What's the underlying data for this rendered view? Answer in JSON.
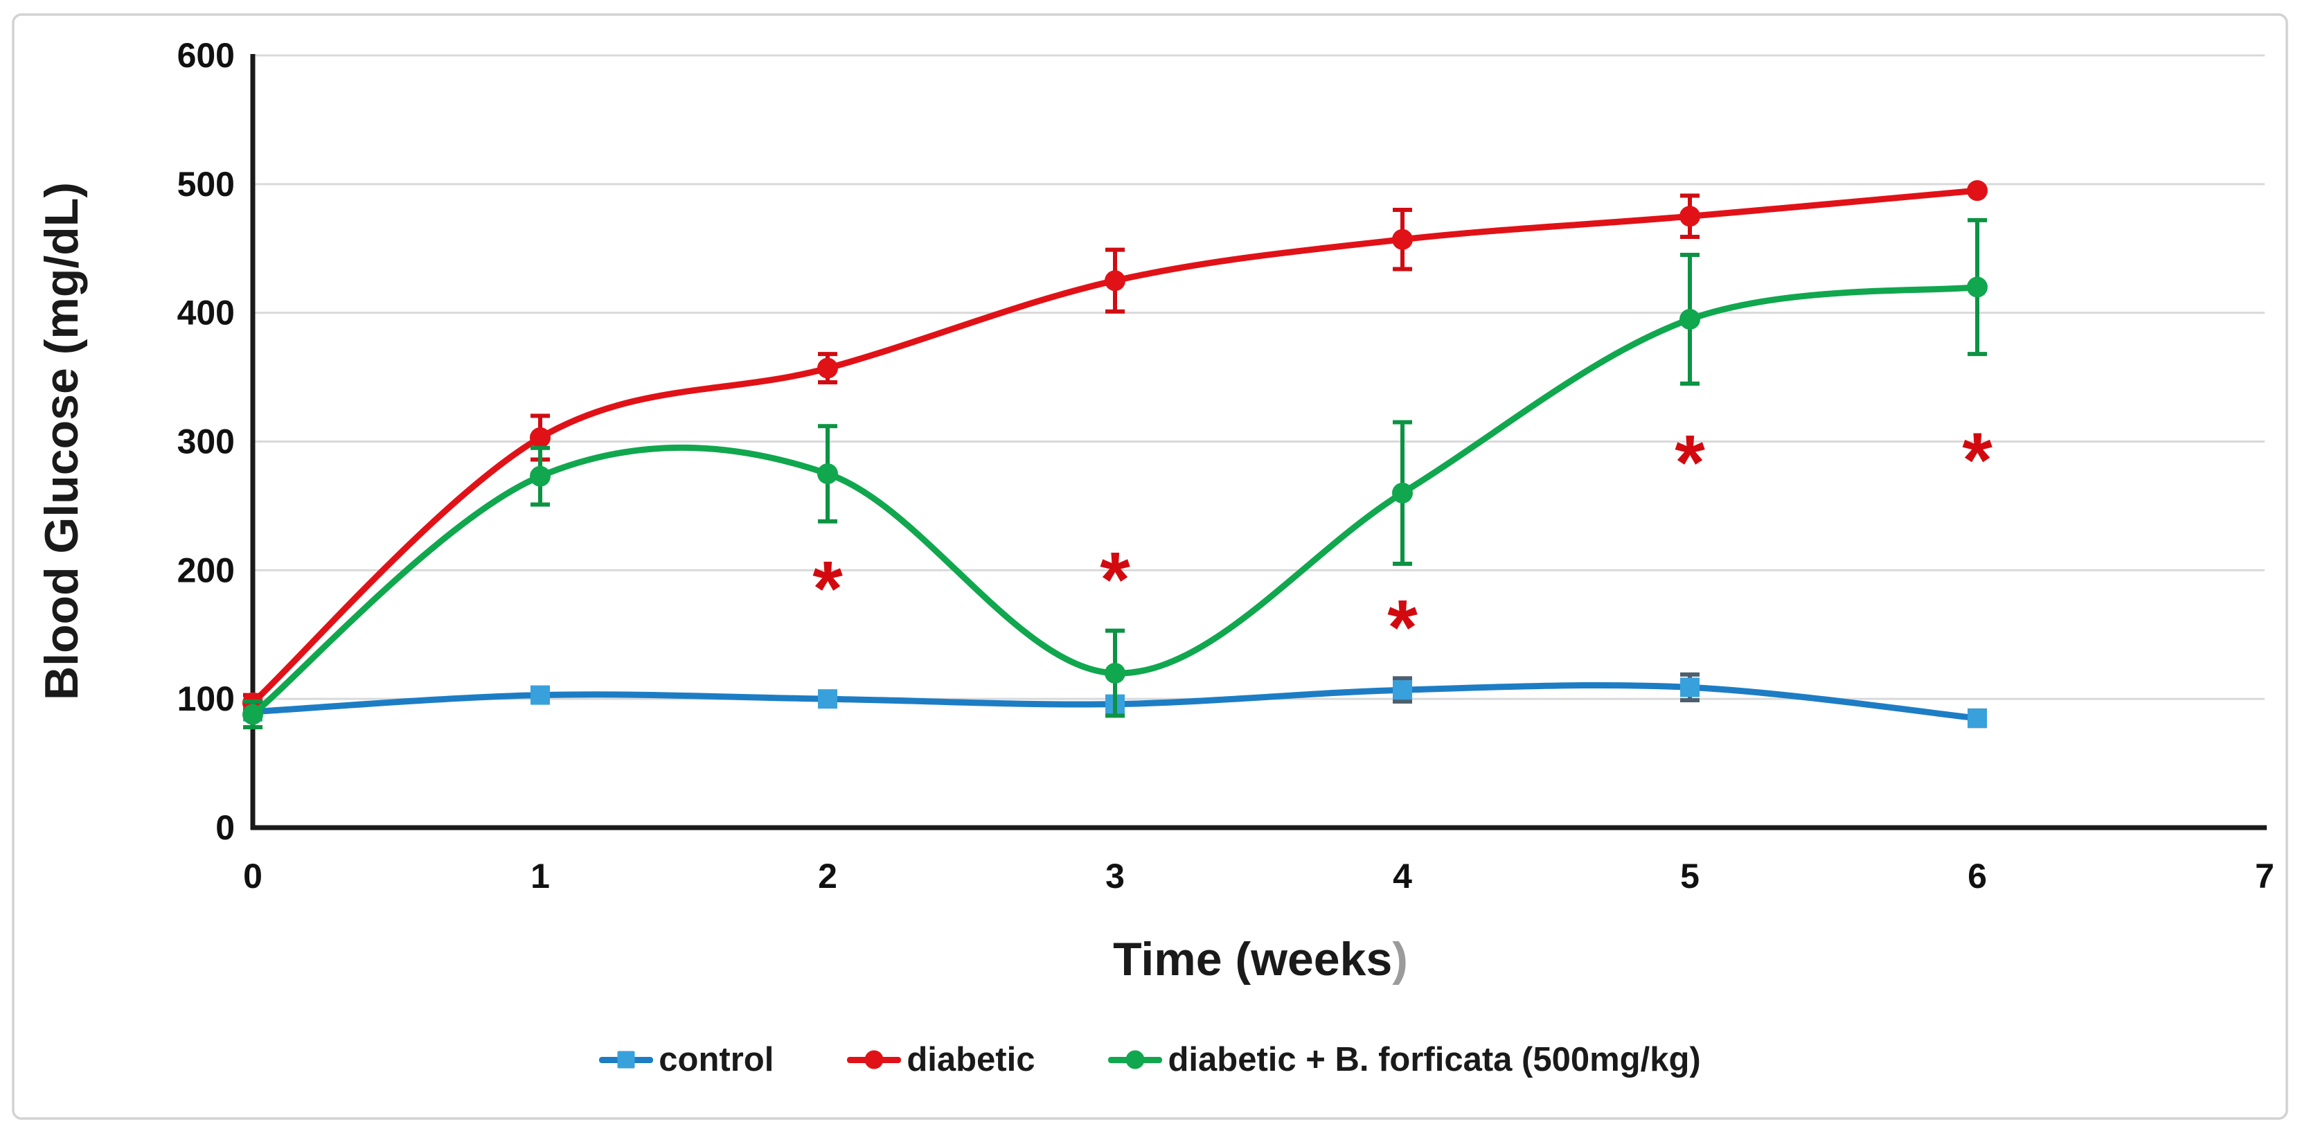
{
  "chart_data": {
    "type": "line",
    "title": "",
    "xlabel": "Time (weeks)",
    "xlabel_parts": {
      "main": "Time (weeks",
      "paren": ")"
    },
    "ylabel": "Blood Glucose (mg/dL)",
    "xlim": [
      0,
      7
    ],
    "ylim": [
      0,
      600
    ],
    "x_ticks": [
      0,
      1,
      2,
      3,
      4,
      5,
      6,
      7
    ],
    "y_ticks": [
      0,
      100,
      200,
      300,
      400,
      500,
      600
    ],
    "grid": true,
    "legend_position": "bottom",
    "x": [
      0,
      1,
      2,
      3,
      4,
      5,
      6
    ],
    "series": [
      {
        "name": "control",
        "line_color": "#1d7dc4",
        "marker": "square",
        "marker_color": "#38a1dc",
        "err_color": "#4d5f6e",
        "values": [
          90,
          103,
          100,
          96,
          107,
          109,
          85
        ],
        "errors": [
          4,
          0,
          0,
          0,
          9,
          10,
          6
        ]
      },
      {
        "name": "diabetic",
        "line_color": "#e01217",
        "marker": "circle",
        "marker_color": "#e01217",
        "err_color": "#cf0d12",
        "values": [
          97,
          303,
          357,
          425,
          457,
          475,
          495
        ],
        "errors": [
          6,
          17,
          11,
          24,
          23,
          16,
          0
        ]
      },
      {
        "name": "diabetic + B. forficata (500mg/kg)",
        "line_color": "#10a74e",
        "marker": "circle",
        "marker_color": "#10a74e",
        "err_color": "#0c9343",
        "values": [
          88,
          273,
          275,
          120,
          260,
          395,
          420
        ],
        "errors": [
          10,
          22,
          37,
          33,
          55,
          50,
          52
        ]
      }
    ],
    "annotations": [
      {
        "text": "*",
        "x": 2,
        "y": 195,
        "color": "#d20a10"
      },
      {
        "text": "*",
        "x": 3,
        "y": 202,
        "color": "#d20a10"
      },
      {
        "text": "*",
        "x": 4,
        "y": 165,
        "color": "#d20a10"
      },
      {
        "text": "*",
        "x": 5,
        "y": 293,
        "color": "#d20a10"
      },
      {
        "text": "*",
        "x": 6,
        "y": 295,
        "color": "#d20a10"
      }
    ],
    "colors": {
      "grid": "#d9d9d9",
      "axis": "#1a1a1a",
      "frame": "#d2d2d2",
      "tick_text": "#111111",
      "title_text": "#1a1a1a",
      "xlabel_paren": "#9b9b9b",
      "background": "#ffffff"
    }
  }
}
